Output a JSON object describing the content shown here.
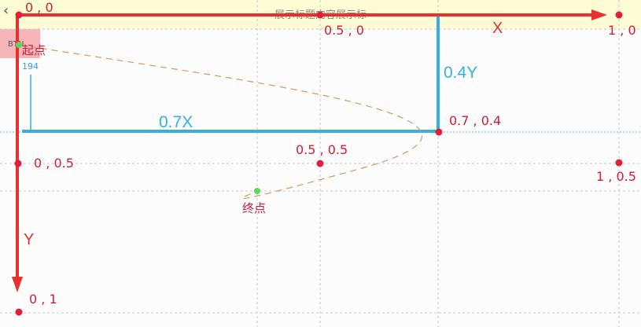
{
  "header": {
    "title": "展示标题内容展示标",
    "back_icon": "chevron-left-icon"
  },
  "box": {
    "label": "BTN",
    "value": "194"
  },
  "points": {
    "origin": "0 , 0",
    "half_x": "0.5 , 0",
    "one_x": "1 , 0",
    "control": "0.7 , 0.4",
    "mid": "0.5 , 0.5",
    "left_half": "0 , 0.5",
    "right_half": "1 , 0.5",
    "one_y": "0 , 1"
  },
  "axes": {
    "x": "X",
    "y": "Y"
  },
  "segments": {
    "horizontal": "0.7X",
    "vertical": "0.4Y"
  },
  "labels": {
    "start": "起点",
    "end": "终点"
  },
  "colors": {
    "axis": "#e8302f",
    "point": "#e0203a",
    "guide": "#35b0e0",
    "curve": "#d39a5c",
    "dot": "#5cd65c"
  }
}
